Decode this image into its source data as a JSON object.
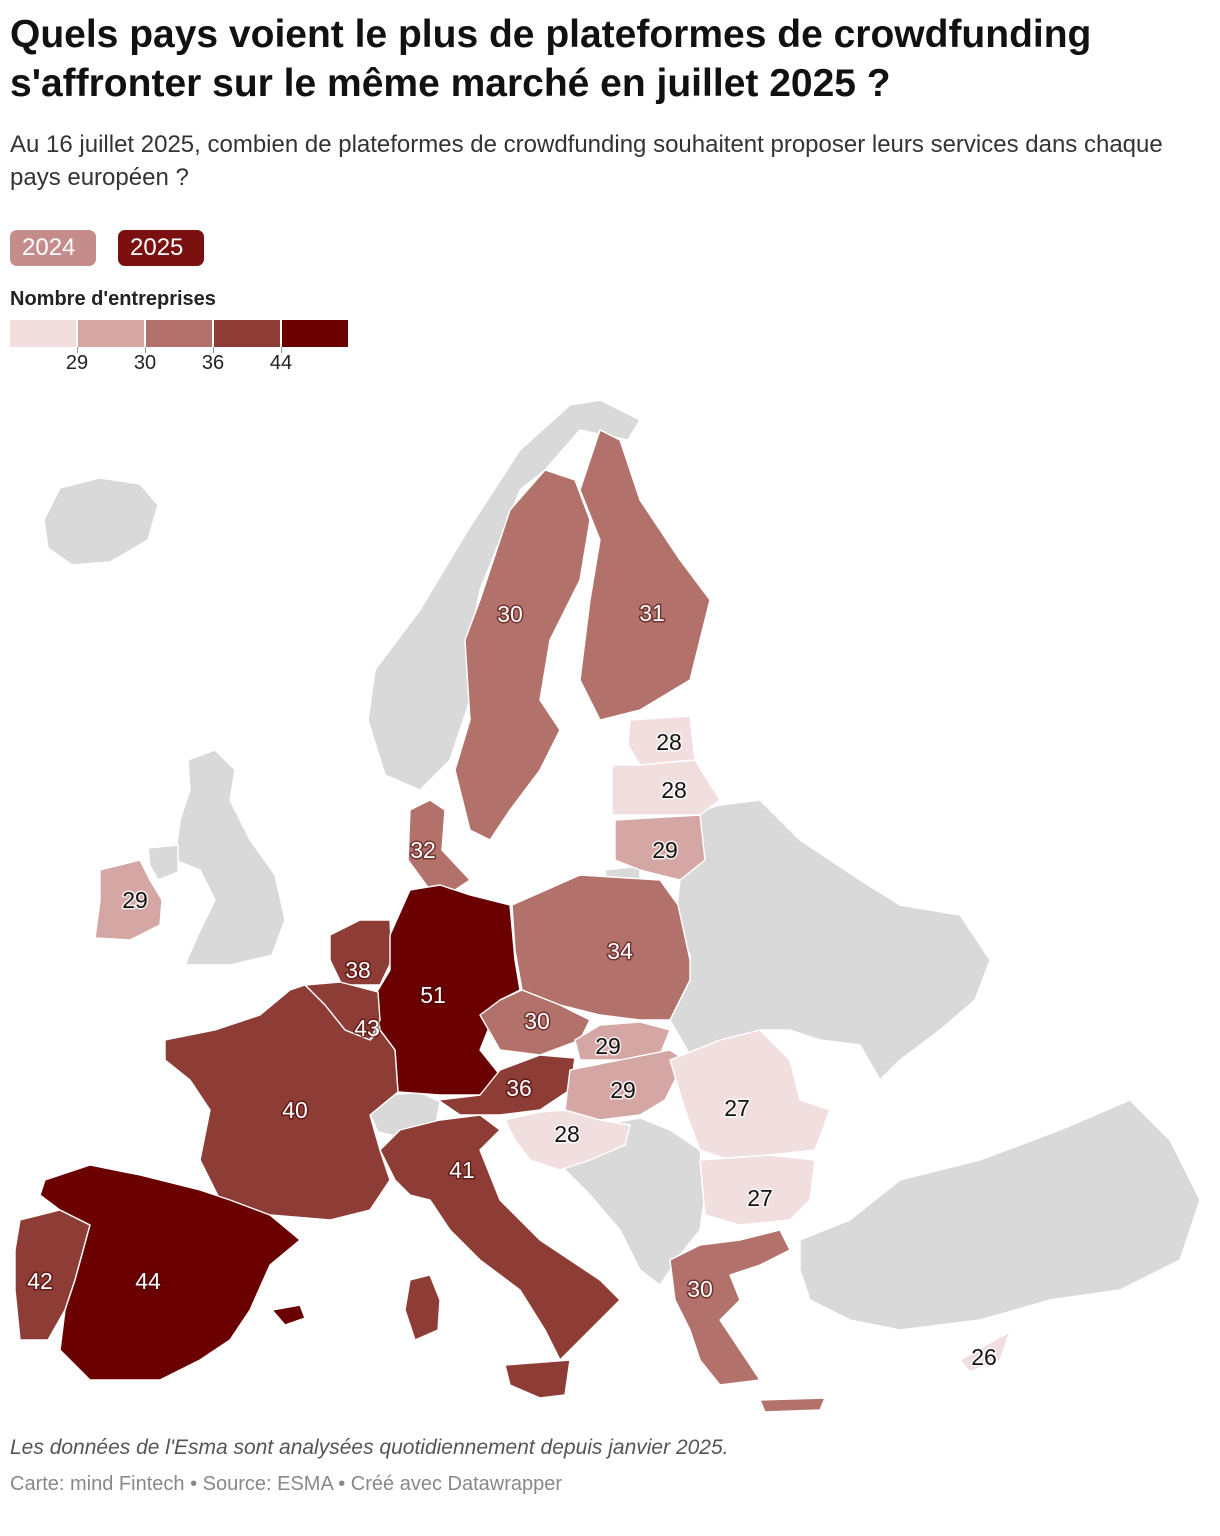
{
  "title": "Quels pays voient le plus de plateformes de crowdfunding s'affronter sur le même marché en juillet 2025 ?",
  "subtitle": "Au 16 juillet 2025, combien de plateformes de crowdfunding souhaitent proposer leurs services dans chaque pays européen ?",
  "toggle": {
    "year_2024": "2024",
    "year_2025": "2025",
    "selected": "2025"
  },
  "legend": {
    "title": "Nombre d'entreprises",
    "colors": [
      "#f1dfdf",
      "#d4a7a4",
      "#b2716a",
      "#8e3d36",
      "#6a0000"
    ],
    "breaks": [
      "29",
      "30",
      "36",
      "44"
    ]
  },
  "colors": {
    "no_data": "#d9d9d9"
  },
  "countries": [
    {
      "name": "Suède",
      "value": 30
    },
    {
      "name": "Finlande",
      "value": 31
    },
    {
      "name": "Estonie",
      "value": 28
    },
    {
      "name": "Lettonie",
      "value": 28
    },
    {
      "name": "Lituanie",
      "value": 29
    },
    {
      "name": "Danemark",
      "value": 32
    },
    {
      "name": "Irlande",
      "value": 29
    },
    {
      "name": "Pays-Bas",
      "value": 38
    },
    {
      "name": "Allemagne",
      "value": 51
    },
    {
      "name": "Belgique",
      "value": 43
    },
    {
      "name": "Pologne",
      "value": 34
    },
    {
      "name": "Tchéquie",
      "value": 30
    },
    {
      "name": "Slovaquie",
      "value": 29
    },
    {
      "name": "Autriche",
      "value": 36
    },
    {
      "name": "Hongrie",
      "value": 29
    },
    {
      "name": "France",
      "value": 40
    },
    {
      "name": "Slovénie",
      "value": 28
    },
    {
      "name": "Roumanie",
      "value": 27
    },
    {
      "name": "Italie",
      "value": 41
    },
    {
      "name": "Bulgarie",
      "value": 27
    },
    {
      "name": "Portugal",
      "value": 42
    },
    {
      "name": "Espagne",
      "value": 44
    },
    {
      "name": "Grèce",
      "value": 30
    },
    {
      "name": "Chypre",
      "value": 26
    }
  ],
  "note": "Les données de l'Esma sont analysées quotidiennement depuis janvier 2025.",
  "credits": "Carte: mind Fintech • Source: ESMA • Créé avec Datawrapper"
}
